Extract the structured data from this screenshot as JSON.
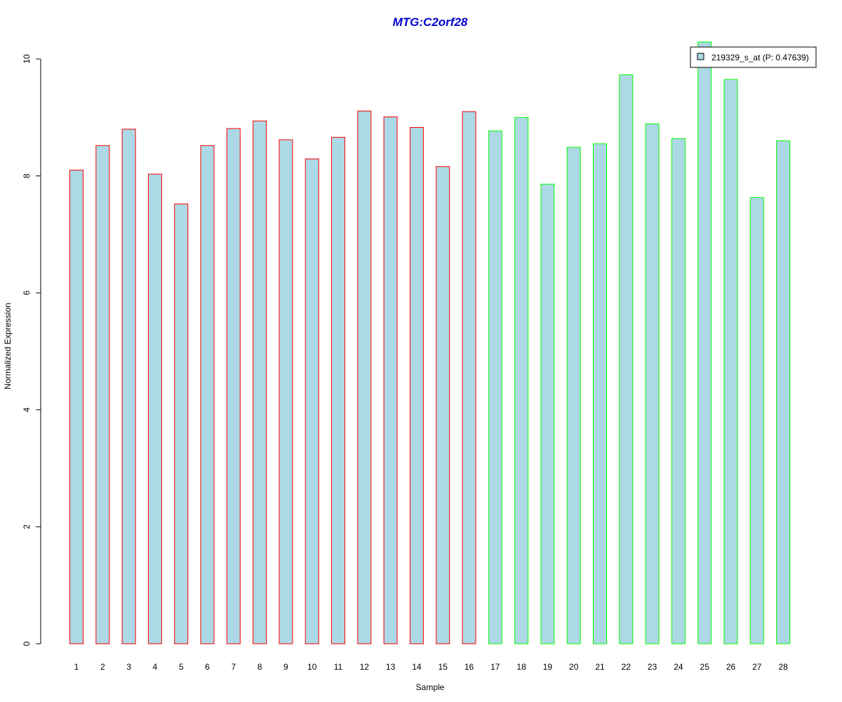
{
  "chart_data": {
    "type": "bar",
    "title": "MTG:C2orf28",
    "xlabel": "Sample",
    "ylabel": "Normalized Expression",
    "ylim": [
      0,
      10
    ],
    "yticks": [
      "0",
      "2",
      "4",
      "6",
      "8",
      "10"
    ],
    "categories": [
      "1",
      "2",
      "3",
      "4",
      "5",
      "6",
      "7",
      "8",
      "9",
      "10",
      "11",
      "12",
      "13",
      "14",
      "15",
      "16",
      "17",
      "18",
      "19",
      "20",
      "21",
      "22",
      "23",
      "24",
      "25",
      "26",
      "27",
      "28"
    ],
    "series": [
      {
        "name": "219329_s_at (P: 0.47639)",
        "values": [
          8.1,
          8.52,
          8.8,
          8.03,
          7.52,
          8.52,
          8.81,
          8.94,
          8.62,
          8.29,
          8.66,
          9.11,
          9.01,
          8.83,
          8.16,
          9.1,
          8.77,
          9.0,
          7.86,
          8.49,
          8.55,
          9.73,
          8.89,
          8.64,
          10.29,
          9.65,
          7.63,
          8.6
        ]
      }
    ],
    "bar_fill": "#add8e6",
    "group_colors": {
      "group1": "#ff0000",
      "group2": "#00ff00"
    },
    "group1_count": 16,
    "title_color": "#0000cd",
    "grid": false,
    "legend_position": "top-right"
  }
}
